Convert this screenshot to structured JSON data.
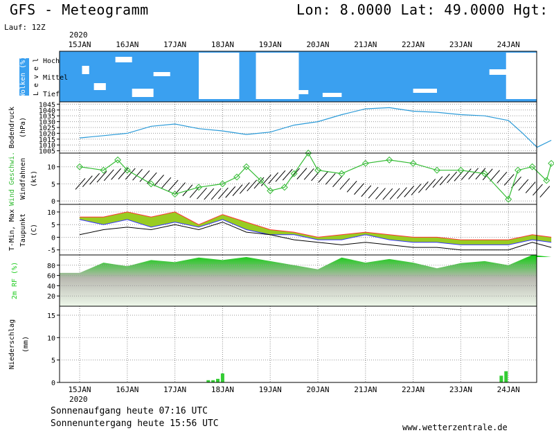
{
  "header": {
    "title": "GFS - Meteogramm",
    "location": "Lon: 8.0000 Lat: 49.0000 Hgt: 18",
    "run": "Lauf: 12Z"
  },
  "footer": {
    "sunrise": "Sonnenaufgang heute 07:16 UTC",
    "sunset": "Sonnenuntergang heute 15:56 UTC",
    "source": "www.wetterzentrale.de"
  },
  "axis": {
    "year": "2020",
    "dates": [
      "15JAN",
      "16JAN",
      "17JAN",
      "18JAN",
      "19JAN",
      "20JAN",
      "21JAN",
      "22JAN",
      "23JAN",
      "24JAN"
    ]
  },
  "colors": {
    "cloud": "#3aa0f0",
    "pressure": "#2a9ad8",
    "wind_speed": "#33bb33",
    "tmax": "#ff3333",
    "tmin": "#3333ff",
    "humidity": "#22cc22",
    "precip": "#33cc33"
  },
  "chart_data": [
    {
      "type": "heatmap",
      "id": "clouds",
      "ylabel": "Wolken (%)",
      "ylabel2": "L e v e l",
      "levels": [
        "Hoch",
        "Mittel",
        "Tief"
      ],
      "note": "High/mid/low cloud cover, mostly overcast except clear spells around 18-19JAN and 24JAN"
    },
    {
      "type": "line",
      "id": "pressure",
      "ylabel": "Bodendruck",
      "unit": "(hPa)",
      "yticks": [
        1005,
        1010,
        1015,
        1020,
        1025,
        1030,
        1035,
        1040,
        1045
      ],
      "ylim": [
        1003,
        1047
      ],
      "x": [
        0,
        0.5,
        1,
        1.5,
        2,
        2.5,
        3,
        3.5,
        4,
        4.5,
        5,
        5.5,
        6,
        6.5,
        7,
        7.5,
        8,
        8.5,
        9,
        9.3,
        9.6,
        9.9
      ],
      "values": [
        1016,
        1018,
        1020,
        1026,
        1028,
        1024,
        1022,
        1019,
        1021,
        1027,
        1030,
        1036,
        1041,
        1042,
        1039,
        1038,
        1036,
        1035,
        1031,
        1020,
        1008,
        1014
      ]
    },
    {
      "type": "line",
      "id": "wind",
      "ylabel": "Wind Geschwi.",
      "ylabel2": "Windfahnen",
      "unit": "(kt)",
      "yticks": [
        0,
        5,
        10
      ],
      "ylim": [
        -1,
        14
      ],
      "x": [
        0,
        0.5,
        0.8,
        1,
        1.5,
        2,
        2.5,
        3,
        3.3,
        3.5,
        3.8,
        4,
        4.3,
        4.5,
        4.8,
        5,
        5.5,
        6,
        6.5,
        7,
        7.5,
        8,
        8.5,
        9,
        9.2,
        9.5,
        9.8,
        9.9
      ],
      "values": [
        10,
        9,
        12,
        9,
        5,
        2,
        4,
        5,
        7,
        10,
        6,
        3,
        4,
        8,
        14,
        9,
        8,
        11,
        12,
        11,
        9,
        9,
        8,
        0.5,
        9,
        10,
        6,
        11
      ]
    },
    {
      "type": "line",
      "id": "temperature",
      "ylabel": "T-Min, Max",
      "ylabel2": "Taupunkt",
      "unit": "(C)",
      "yticks": [
        -5,
        0,
        5,
        10
      ],
      "ylim": [
        -7,
        13
      ],
      "x": [
        0,
        0.5,
        1,
        1.5,
        2,
        2.5,
        3,
        3.5,
        4,
        4.5,
        5,
        5.5,
        6,
        6.5,
        7,
        7.5,
        8,
        8.5,
        9,
        9.5,
        9.9
      ],
      "series": [
        {
          "name": "T-Max",
          "values": [
            8,
            8,
            10,
            8,
            10,
            5,
            9,
            6,
            3,
            2,
            0,
            1,
            2,
            1,
            0,
            0,
            -1,
            -1,
            -1,
            1,
            0
          ]
        },
        {
          "name": "T-Min",
          "values": [
            7,
            5,
            7,
            4,
            6,
            4,
            7,
            3,
            1,
            1,
            -1,
            -1,
            1,
            -1,
            -2,
            -2,
            -3,
            -3,
            -3,
            -1,
            -2
          ]
        },
        {
          "name": "Taupunkt",
          "values": [
            1,
            3,
            4,
            3,
            5,
            3,
            6,
            2,
            1,
            -1,
            -2,
            -3,
            -2,
            -3,
            -4,
            -4,
            -5,
            -5,
            -5,
            -2,
            -4
          ]
        }
      ]
    },
    {
      "type": "area",
      "id": "humidity",
      "ylabel": "2m RF (%)",
      "yticks": [
        20,
        40,
        60,
        80
      ],
      "ylim": [
        0,
        100
      ],
      "x": [
        0,
        0.5,
        1,
        1.5,
        2,
        2.5,
        3,
        3.5,
        4,
        4.5,
        5,
        5.5,
        6,
        6.5,
        7,
        7.5,
        8,
        8.5,
        9,
        9.5,
        9.9
      ],
      "values": [
        65,
        85,
        78,
        90,
        86,
        95,
        90,
        96,
        88,
        80,
        72,
        95,
        85,
        92,
        85,
        74,
        84,
        88,
        80,
        100,
        96
      ]
    },
    {
      "type": "bar",
      "id": "precip",
      "ylabel": "Niederschlag",
      "unit": "(mm)",
      "yticks": [
        0,
        5,
        10,
        15
      ],
      "ylim": [
        0,
        17
      ],
      "x": [
        2.7,
        2.8,
        2.9,
        3.0,
        8.85,
        8.95
      ],
      "values": [
        0.5,
        0.5,
        0.8,
        2.0,
        1.5,
        2.5
      ]
    }
  ]
}
